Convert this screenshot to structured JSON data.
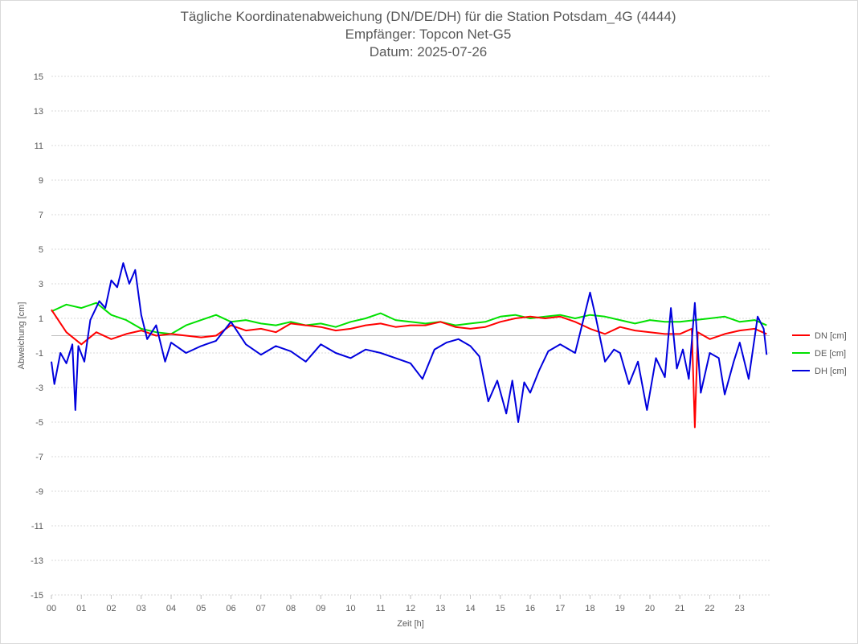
{
  "chart_data": {
    "type": "line",
    "title": "Tägliche Koordinatenabweichung (DN/DE/DH) für die Station Potsdam_4G (4444)",
    "subtitle_lines": [
      "Empfänger: Topcon Net-G5",
      "Datum: 2025-07-26"
    ],
    "xlabel": "Zeit [h]",
    "ylabel": "Abweichung [cm]",
    "xlim": [
      0,
      24
    ],
    "ylim": [
      -15,
      15
    ],
    "x_ticks": [
      "00",
      "01",
      "02",
      "03",
      "04",
      "05",
      "06",
      "07",
      "08",
      "09",
      "10",
      "11",
      "12",
      "13",
      "14",
      "15",
      "16",
      "17",
      "18",
      "19",
      "20",
      "21",
      "22",
      "23"
    ],
    "y_ticks": [
      15,
      13,
      11,
      9,
      7,
      5,
      3,
      1,
      -1,
      -3,
      -5,
      -7,
      -9,
      -11,
      -13,
      -15
    ],
    "grid": "horizontal dotted",
    "legend_position": "right",
    "series": [
      {
        "name": "DN [cm]",
        "color": "#ff0000",
        "x": [
          0.0,
          0.5,
          1.0,
          1.5,
          2.0,
          2.5,
          3.0,
          3.5,
          4.0,
          4.5,
          5.0,
          5.5,
          6.0,
          6.5,
          7.0,
          7.5,
          8.0,
          8.5,
          9.0,
          9.5,
          10.0,
          10.5,
          11.0,
          11.5,
          12.0,
          12.5,
          13.0,
          13.5,
          14.0,
          14.5,
          15.0,
          15.5,
          16.0,
          16.5,
          17.0,
          17.5,
          18.0,
          18.5,
          19.0,
          19.5,
          20.0,
          20.5,
          21.0,
          21.4,
          21.5,
          21.6,
          22.0,
          22.5,
          23.0,
          23.5,
          23.9
        ],
        "values": [
          1.5,
          0.2,
          -0.5,
          0.2,
          -0.2,
          0.1,
          0.3,
          0.0,
          0.1,
          0.0,
          -0.1,
          0.0,
          0.6,
          0.3,
          0.4,
          0.2,
          0.7,
          0.6,
          0.5,
          0.3,
          0.4,
          0.6,
          0.7,
          0.5,
          0.6,
          0.6,
          0.8,
          0.5,
          0.4,
          0.5,
          0.8,
          1.0,
          1.1,
          1.0,
          1.1,
          0.8,
          0.4,
          0.1,
          0.5,
          0.3,
          0.2,
          0.1,
          0.1,
          0.4,
          -5.3,
          0.2,
          -0.2,
          0.1,
          0.3,
          0.4,
          0.1
        ]
      },
      {
        "name": "DE [cm]",
        "color": "#00e000",
        "x": [
          0.0,
          0.5,
          1.0,
          1.5,
          2.0,
          2.5,
          3.0,
          3.5,
          4.0,
          4.5,
          5.0,
          5.5,
          6.0,
          6.5,
          7.0,
          7.5,
          8.0,
          8.5,
          9.0,
          9.5,
          10.0,
          10.5,
          11.0,
          11.5,
          12.0,
          12.5,
          13.0,
          13.5,
          14.0,
          14.5,
          15.0,
          15.5,
          16.0,
          16.5,
          17.0,
          17.5,
          18.0,
          18.5,
          19.0,
          19.5,
          20.0,
          20.5,
          21.0,
          21.5,
          22.0,
          22.5,
          23.0,
          23.5,
          23.9
        ],
        "values": [
          1.4,
          1.8,
          1.6,
          1.9,
          1.2,
          0.9,
          0.4,
          0.2,
          0.1,
          0.6,
          0.9,
          1.2,
          0.8,
          0.9,
          0.7,
          0.6,
          0.8,
          0.6,
          0.7,
          0.5,
          0.8,
          1.0,
          1.3,
          0.9,
          0.8,
          0.7,
          0.8,
          0.6,
          0.7,
          0.8,
          1.1,
          1.2,
          1.0,
          1.1,
          1.2,
          1.0,
          1.2,
          1.1,
          0.9,
          0.7,
          0.9,
          0.8,
          0.8,
          0.9,
          1.0,
          1.1,
          0.8,
          0.9,
          0.6
        ]
      },
      {
        "name": "DH [cm]",
        "color": "#0000dd",
        "x": [
          0.0,
          0.1,
          0.3,
          0.5,
          0.7,
          0.8,
          0.9,
          1.1,
          1.3,
          1.6,
          1.8,
          2.0,
          2.2,
          2.4,
          2.6,
          2.8,
          3.0,
          3.2,
          3.5,
          3.8,
          4.0,
          4.5,
          5.0,
          5.5,
          6.0,
          6.5,
          7.0,
          7.5,
          8.0,
          8.5,
          9.0,
          9.5,
          10.0,
          10.5,
          11.0,
          11.5,
          12.0,
          12.4,
          12.8,
          13.2,
          13.6,
          14.0,
          14.3,
          14.6,
          14.9,
          15.2,
          15.4,
          15.6,
          15.8,
          16.0,
          16.3,
          16.6,
          17.0,
          17.5,
          18.0,
          18.2,
          18.5,
          18.8,
          19.0,
          19.3,
          19.6,
          19.9,
          20.2,
          20.5,
          20.7,
          20.9,
          21.1,
          21.3,
          21.5,
          21.7,
          22.0,
          22.3,
          22.5,
          22.8,
          23.0,
          23.3,
          23.6,
          23.8,
          23.9
        ],
        "values": [
          -1.5,
          -2.8,
          -1.0,
          -1.6,
          -0.5,
          -4.3,
          -0.6,
          -1.5,
          0.9,
          2.0,
          1.6,
          3.2,
          2.8,
          4.2,
          3.0,
          3.8,
          1.2,
          -0.2,
          0.6,
          -1.5,
          -0.4,
          -1.0,
          -0.6,
          -0.3,
          0.8,
          -0.5,
          -1.1,
          -0.6,
          -0.9,
          -1.5,
          -0.5,
          -1.0,
          -1.3,
          -0.8,
          -1.0,
          -1.3,
          -1.6,
          -2.5,
          -0.8,
          -0.4,
          -0.2,
          -0.6,
          -1.2,
          -3.8,
          -2.6,
          -4.5,
          -2.6,
          -5.0,
          -2.7,
          -3.3,
          -2.0,
          -0.9,
          -0.5,
          -1.0,
          2.5,
          1.0,
          -1.5,
          -0.8,
          -1.0,
          -2.8,
          -1.5,
          -4.3,
          -1.3,
          -2.4,
          1.6,
          -1.9,
          -0.8,
          -2.5,
          1.9,
          -3.3,
          -1.0,
          -1.3,
          -3.4,
          -1.5,
          -0.4,
          -2.5,
          1.1,
          0.4,
          -1.1
        ]
      }
    ]
  }
}
